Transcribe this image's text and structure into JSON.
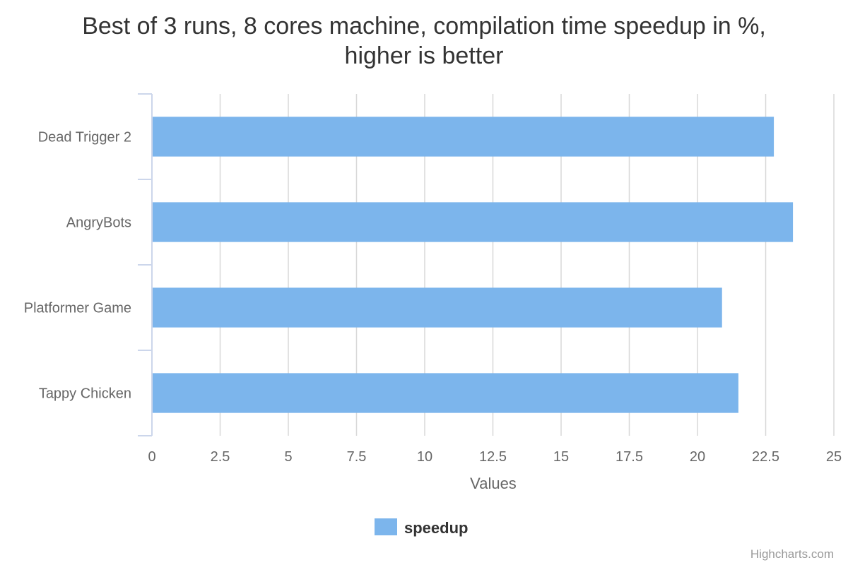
{
  "chart_data": {
    "type": "bar",
    "orientation": "horizontal",
    "title": [
      "Best of 3 runs, 8 cores machine, compilation time speedup in %,",
      "higher is better"
    ],
    "categories": [
      "Dead Trigger 2",
      "AngryBots",
      "Platformer Game",
      "Tappy Chicken"
    ],
    "series": [
      {
        "name": "speedup",
        "color": "#7cb5ec",
        "values": [
          22.8,
          23.5,
          20.9,
          21.5
        ]
      }
    ],
    "xlabel": "Values",
    "xlim": [
      0,
      25
    ],
    "xticks": [
      "0",
      "2.5",
      "5",
      "7.5",
      "10",
      "12.5",
      "15",
      "17.5",
      "20",
      "22.5",
      "25"
    ],
    "grid": true,
    "legend": "bottom-center"
  },
  "credits": "Highcharts.com"
}
